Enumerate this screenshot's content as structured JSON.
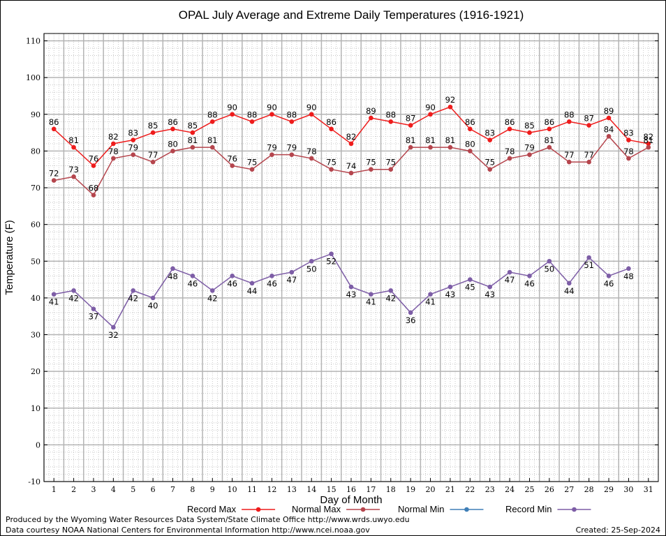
{
  "chart_data": {
    "type": "line",
    "title": "OPAL July Average and Extreme Daily Temperatures (1916-1921)",
    "xlabel": "Day of Month",
    "ylabel": "Temperature (F)",
    "x": [
      1,
      2,
      3,
      4,
      5,
      6,
      7,
      8,
      9,
      10,
      11,
      12,
      13,
      14,
      15,
      16,
      17,
      18,
      19,
      20,
      21,
      22,
      23,
      24,
      25,
      26,
      27,
      28,
      29,
      30,
      31
    ],
    "ylim": [
      -10,
      112
    ],
    "yticks": [
      -10,
      0,
      10,
      20,
      30,
      40,
      50,
      60,
      70,
      80,
      90,
      100,
      110
    ],
    "grid": true,
    "legend_position": "bottom",
    "series": [
      {
        "name": "Record Max",
        "color": "#ee1c1c",
        "values": [
          86,
          81,
          76,
          82,
          83,
          85,
          86,
          85,
          88,
          90,
          88,
          90,
          88,
          90,
          86,
          82,
          89,
          88,
          87,
          90,
          92,
          86,
          83,
          86,
          85,
          86,
          88,
          87,
          89,
          83,
          82
        ]
      },
      {
        "name": "Normal Max",
        "color": "#b5454d",
        "values": [
          72,
          73,
          68,
          78,
          79,
          77,
          80,
          81,
          81,
          76,
          75,
          79,
          79,
          78,
          75,
          74,
          75,
          75,
          81,
          81,
          81,
          80,
          75,
          78,
          79,
          81,
          77,
          77,
          84,
          78,
          81
        ]
      },
      {
        "name": "Normal Min",
        "color": "#3f7fb7",
        "values": [
          null,
          null,
          null,
          null,
          null,
          null,
          null,
          null,
          null,
          null,
          null,
          null,
          null,
          null,
          null,
          null,
          null,
          null,
          null,
          null,
          null,
          null,
          null,
          null,
          null,
          null,
          null,
          null,
          null,
          null,
          null
        ]
      },
      {
        "name": "Record Min",
        "color": "#7d5da6",
        "values": [
          41,
          42,
          37,
          32,
          42,
          40,
          48,
          46,
          42,
          46,
          44,
          46,
          47,
          50,
          52,
          43,
          41,
          42,
          36,
          41,
          43,
          45,
          43,
          47,
          46,
          50,
          44,
          51,
          46,
          48,
          null
        ]
      }
    ]
  },
  "footer": {
    "produced_by": "Produced by the Wyoming Water Resources Data System/State Climate Office http://www.wrds.uwyo.edu",
    "data_courtesy": "Data courtesy NOAA National Centers for Environmental Information http://www.ncei.noaa.gov",
    "created": "Created:  25-Sep-2024"
  }
}
